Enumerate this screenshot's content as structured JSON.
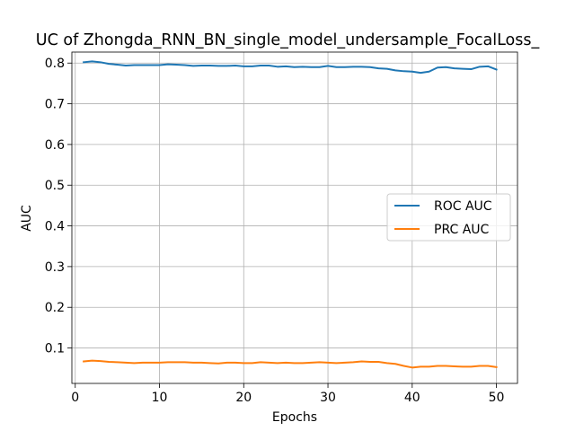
{
  "chart_data": {
    "type": "line",
    "title": "UC of Zhongda_RNN_BN_single_model_undersample_FocalLoss_",
    "xlabel": "Epochs",
    "ylabel": "AUC",
    "xlim": [
      -0.4,
      52.5
    ],
    "ylim": [
      0.013,
      0.827
    ],
    "xticks": [
      0,
      10,
      20,
      30,
      40,
      50
    ],
    "yticks": [
      0.1,
      0.2,
      0.3,
      0.4,
      0.5,
      0.6,
      0.7,
      0.8
    ],
    "grid": true,
    "legend_position": "center-right",
    "x": [
      1,
      2,
      3,
      4,
      5,
      6,
      7,
      8,
      9,
      10,
      11,
      12,
      13,
      14,
      15,
      16,
      17,
      18,
      19,
      20,
      21,
      22,
      23,
      24,
      25,
      26,
      27,
      28,
      29,
      30,
      31,
      32,
      33,
      34,
      35,
      36,
      37,
      38,
      39,
      40,
      41,
      42,
      43,
      44,
      45,
      46,
      47,
      48,
      49,
      50
    ],
    "series": [
      {
        "name": "ROC AUC",
        "color": "#1f77b4",
        "values": [
          0.802,
          0.804,
          0.802,
          0.798,
          0.796,
          0.794,
          0.795,
          0.795,
          0.795,
          0.795,
          0.797,
          0.796,
          0.795,
          0.793,
          0.794,
          0.794,
          0.793,
          0.793,
          0.794,
          0.792,
          0.792,
          0.794,
          0.794,
          0.791,
          0.792,
          0.79,
          0.791,
          0.79,
          0.79,
          0.793,
          0.79,
          0.79,
          0.791,
          0.791,
          0.79,
          0.787,
          0.786,
          0.782,
          0.78,
          0.779,
          0.776,
          0.779,
          0.789,
          0.79,
          0.787,
          0.786,
          0.785,
          0.791,
          0.792,
          0.784
        ]
      },
      {
        "name": "PRC AUC",
        "color": "#ff7f0e",
        "values": [
          0.067,
          0.069,
          0.068,
          0.066,
          0.065,
          0.064,
          0.063,
          0.064,
          0.064,
          0.064,
          0.065,
          0.065,
          0.065,
          0.064,
          0.064,
          0.063,
          0.062,
          0.064,
          0.064,
          0.063,
          0.063,
          0.065,
          0.064,
          0.063,
          0.064,
          0.063,
          0.063,
          0.064,
          0.065,
          0.064,
          0.063,
          0.064,
          0.065,
          0.067,
          0.066,
          0.066,
          0.063,
          0.061,
          0.056,
          0.052,
          0.054,
          0.054,
          0.056,
          0.056,
          0.055,
          0.054,
          0.054,
          0.056,
          0.056,
          0.053
        ]
      }
    ]
  }
}
